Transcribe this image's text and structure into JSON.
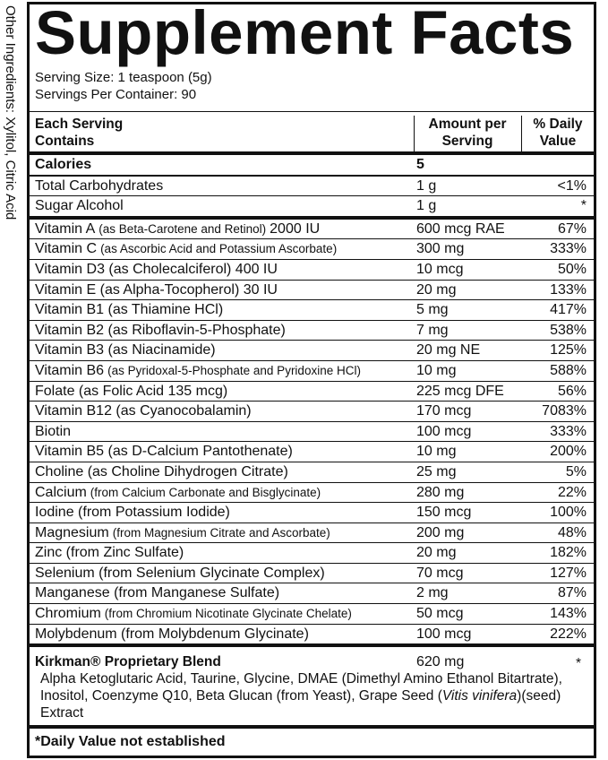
{
  "side_note": "Other Ingredients: Xylitol, Citric Acid",
  "header": {
    "title": "Supplement Facts",
    "serving_size": "Serving Size: 1 teaspoon (5g)",
    "servings_per_container": "Servings Per Container: 90"
  },
  "table": {
    "columns": [
      "Each Serving Contains",
      "Amount per Serving",
      "% Daily Value"
    ],
    "rows": [
      {
        "name": "Calories",
        "amount": "5"
      },
      {
        "name": "Total Carbohydrates",
        "amount": "1 g",
        "dv": "<1%"
      },
      {
        "name": "Sugar Alcohol",
        "amount": "1 g",
        "dv": "*"
      },
      {
        "name": "Vitamin A",
        "detail": "(as Beta-Carotene and Retinol)",
        "suffix": "2000 IU",
        "amount": "600 mcg RAE",
        "dv": "67%"
      },
      {
        "name": "Vitamin C",
        "detail": "(as Ascorbic Acid and Potassium Ascorbate)",
        "amount": "300 mg",
        "dv": "333%"
      },
      {
        "name": "Vitamin D3 (as Cholecalciferol) 400 IU",
        "amount": "10 mcg",
        "dv": "50%"
      },
      {
        "name": "Vitamin E (as Alpha-Tocopherol) 30 IU",
        "amount": "20 mg",
        "dv": "133%"
      },
      {
        "name": "Vitamin B1 (as Thiamine HCl)",
        "amount": "5 mg",
        "dv": "417%"
      },
      {
        "name": "Vitamin B2 (as Riboflavin-5-Phosphate)",
        "amount": "7 mg",
        "dv": "538%"
      },
      {
        "name": "Vitamin B3 (as Niacinamide)",
        "amount": "20 mg NE",
        "dv": "125%"
      },
      {
        "name": "Vitamin B6",
        "detail": "(as Pyridoxal-5-Phosphate and Pyridoxine HCl)",
        "amount": "10 mg",
        "dv": "588%"
      },
      {
        "name": "Folate (as Folic Acid 135 mcg)",
        "amount": "225 mcg DFE",
        "dv": "56%"
      },
      {
        "name": "Vitamin B12 (as Cyanocobalamin)",
        "amount": "170 mcg",
        "dv": "7083%"
      },
      {
        "name": "Biotin",
        "amount": "100 mcg",
        "dv": "333%"
      },
      {
        "name": "Vitamin B5 (as D-Calcium Pantothenate)",
        "amount": "10 mg",
        "dv": "200%"
      },
      {
        "name": "Choline (as Choline Dihydrogen Citrate)",
        "amount": "25 mg",
        "dv": "5%"
      },
      {
        "name": "Calcium",
        "detail": "(from Calcium Carbonate and Bisglycinate)",
        "amount": "280 mg",
        "dv": "22%"
      },
      {
        "name": "Iodine (from Potassium Iodide)",
        "amount": "150 mcg",
        "dv": "100%"
      },
      {
        "name": "Magnesium",
        "detail": "(from Magnesium Citrate and Ascorbate)",
        "amount": "200 mg",
        "dv": "48%"
      },
      {
        "name": "Zinc (from Zinc Sulfate)",
        "amount": "20 mg",
        "dv": "182%"
      },
      {
        "name": "Selenium (from Selenium Glycinate Complex)",
        "amount": "70 mcg",
        "dv": "127%"
      },
      {
        "name": "Manganese (from Manganese Sulfate)",
        "amount": "2 mg",
        "dv": "87%"
      },
      {
        "name": "Chromium",
        "detail": "(from Chromium Nicotinate Glycinate Chelate)",
        "amount": "50 mcg",
        "dv": "143%"
      },
      {
        "name": "Molybdenum (from Molybdenum Glycinate)",
        "amount": "100 mcg",
        "dv": "222%"
      }
    ]
  },
  "blend": {
    "name": "Kirkman® Proprietary Blend",
    "amount": "620 mg",
    "dv": "*",
    "ingredients": "Alpha Ketoglutaric Acid, Taurine, Glycine, DMAE (Dimethyl Amino Ethanol Bitartrate), Inositol, Coenzyme Q10, Beta Glucan (from Yeast), Grape Seed (",
    "latin_name": "Vitis vinifera",
    "ingredients_end": ")(seed) Extract"
  },
  "footnote": "*Daily Value not established"
}
